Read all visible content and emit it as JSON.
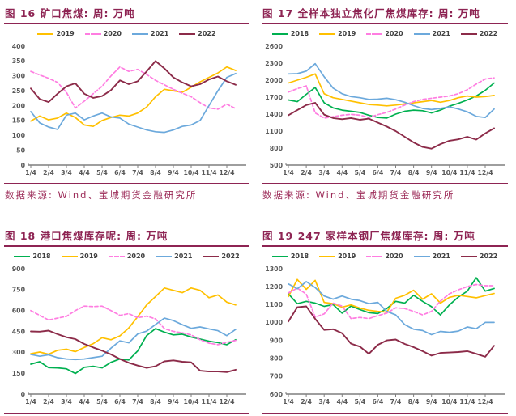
{
  "colors": {
    "title": "#8E2453",
    "rule": "#8E2453",
    "source": "#9C2B58",
    "axis_text": "#595959",
    "axis_line": "#7F7F7F",
    "s2018": "#00B050",
    "s2019": "#FFC000",
    "s2020": "#FF7DE1",
    "s2021": "#6CA9DC",
    "s2022": "#8C2B49"
  },
  "chart_data": [
    {
      "id": "fig16",
      "type": "line",
      "title": "图 16 矿口焦煤: 周: 万吨",
      "source": "数据来源: Wind、宝城期货金融研究所",
      "ylim": [
        0,
        400
      ],
      "ystep": 50,
      "grid": false,
      "legend_position": "top-center",
      "x_labels": [
        "1/4",
        "2/4",
        "3/4",
        "4/4",
        "5/4",
        "6/4",
        "7/4",
        "8/4",
        "9/4",
        "10/4",
        "11/4",
        "12/4"
      ],
      "series": [
        {
          "name": "2019",
          "color": "#FFC000",
          "dash": false,
          "values": [
            148,
            165,
            152,
            158,
            175,
            160,
            135,
            130,
            150,
            160,
            168,
            165,
            175,
            195,
            230,
            255,
            250,
            245,
            262,
            280,
            295,
            310,
            330,
            318
          ]
        },
        {
          "name": "2020",
          "color": "#FF7DE1",
          "dash": true,
          "values": [
            315,
            303,
            292,
            278,
            245,
            192,
            215,
            240,
            265,
            300,
            330,
            315,
            322,
            305,
            285,
            270,
            255,
            242,
            230,
            210,
            192,
            188,
            205,
            190
          ]
        },
        {
          "name": "2021",
          "color": "#6CA9DC",
          "dash": false,
          "values": [
            180,
            142,
            128,
            120,
            168,
            175,
            152,
            165,
            175,
            162,
            158,
            138,
            128,
            118,
            112,
            110,
            118,
            130,
            135,
            150,
            200,
            250,
            295,
            308
          ]
        },
        {
          "name": "2022",
          "color": "#8C2B49",
          "dash": false,
          "values": [
            258,
            222,
            212,
            240,
            265,
            275,
            240,
            226,
            232,
            252,
            285,
            272,
            282,
            315,
            350,
            325,
            295,
            278,
            265,
            272,
            288,
            298,
            282,
            270
          ]
        }
      ]
    },
    {
      "id": "fig17",
      "type": "line",
      "title": "图 17 全样本独立焦化厂焦煤库存: 周: 万吨",
      "source": "数据来源: Wind、宝城期货金融研究所",
      "ylim": [
        500,
        2600
      ],
      "ystep": 300,
      "grid": false,
      "legend_position": "top-center",
      "x_labels": [
        "1/4",
        "2/4",
        "3/4",
        "4/4",
        "5/4",
        "6/4",
        "7/4",
        "8/4",
        "9/4",
        "10/4",
        "11/4",
        "12/4"
      ],
      "series": [
        {
          "name": "2018",
          "color": "#00B050",
          "dash": false,
          "values": [
            1650,
            1620,
            1750,
            1870,
            1600,
            1510,
            1470,
            1450,
            1430,
            1380,
            1340,
            1330,
            1400,
            1450,
            1470,
            1460,
            1420,
            1470,
            1540,
            1590,
            1650,
            1720,
            1820,
            1950
          ]
        },
        {
          "name": "2019",
          "color": "#FFC000",
          "dash": false,
          "values": [
            1950,
            2000,
            2050,
            2110,
            1760,
            1690,
            1660,
            1630,
            1600,
            1570,
            1560,
            1545,
            1560,
            1580,
            1600,
            1620,
            1640,
            1610,
            1640,
            1690,
            1720,
            1700,
            1710,
            1730
          ]
        },
        {
          "name": "2020",
          "color": "#FF7DE1",
          "dash": true,
          "values": [
            1790,
            1850,
            1900,
            1420,
            1330,
            1355,
            1380,
            1395,
            1380,
            1340,
            1390,
            1430,
            1490,
            1560,
            1620,
            1660,
            1680,
            1700,
            1720,
            1760,
            1830,
            1930,
            2020,
            2040
          ]
        },
        {
          "name": "2021",
          "color": "#6CA9DC",
          "dash": false,
          "values": [
            2110,
            2115,
            2160,
            2290,
            2060,
            1860,
            1760,
            1710,
            1690,
            1660,
            1665,
            1680,
            1655,
            1610,
            1550,
            1500,
            1480,
            1500,
            1530,
            1490,
            1440,
            1360,
            1340,
            1490
          ]
        },
        {
          "name": "2022",
          "color": "#8C2B49",
          "dash": false,
          "values": [
            1380,
            1470,
            1560,
            1600,
            1390,
            1330,
            1310,
            1330,
            1300,
            1320,
            1250,
            1180,
            1100,
            1000,
            900,
            820,
            790,
            870,
            930,
            955,
            1000,
            950,
            1060,
            1150
          ]
        }
      ]
    },
    {
      "id": "fig18",
      "type": "line",
      "title": "图 18 港口焦煤库存呢: 周: 万吨",
      "ylim": [
        0,
        900
      ],
      "ystep": 150,
      "grid": false,
      "legend_position": "top-center",
      "x_labels": [
        "1/4",
        "2/4",
        "3/4",
        "4/4",
        "5/4",
        "6/4",
        "7/4",
        "8/4",
        "9/4",
        "10/4",
        "11/4",
        "12/4"
      ],
      "series": [
        {
          "name": "2018",
          "color": "#00B050",
          "dash": false,
          "values": [
            215,
            232,
            190,
            188,
            182,
            148,
            192,
            200,
            188,
            228,
            252,
            245,
            310,
            420,
            470,
            445,
            425,
            430,
            410,
            395,
            380,
            370,
            355,
            390
          ]
        },
        {
          "name": "2019",
          "color": "#FFC000",
          "dash": false,
          "values": [
            290,
            302,
            286,
            315,
            322,
            305,
            335,
            362,
            405,
            390,
            418,
            475,
            555,
            640,
            700,
            762,
            745,
            728,
            762,
            745,
            692,
            712,
            660,
            640
          ]
        },
        {
          "name": "2020",
          "color": "#FF7DE1",
          "dash": true,
          "values": [
            600,
            565,
            532,
            545,
            558,
            600,
            632,
            628,
            632,
            600,
            565,
            578,
            548,
            560,
            540,
            470,
            450,
            440,
            425,
            390,
            365,
            355,
            372,
            385
          ]
        },
        {
          "name": "2021",
          "color": "#6CA9DC",
          "dash": false,
          "values": [
            285,
            272,
            282,
            262,
            252,
            248,
            252,
            262,
            272,
            330,
            382,
            368,
            432,
            452,
            500,
            545,
            528,
            498,
            472,
            482,
            468,
            455,
            420,
            465
          ]
        },
        {
          "name": "2022",
          "color": "#8C2B49",
          "dash": false,
          "values": [
            450,
            448,
            456,
            430,
            408,
            395,
            360,
            335,
            312,
            285,
            252,
            225,
            205,
            188,
            200,
            235,
            242,
            232,
            228,
            168,
            162,
            162,
            158,
            175
          ]
        }
      ]
    },
    {
      "id": "fig19",
      "type": "line",
      "title": "图 19 247 家样本钢厂焦煤库存: 周: 万吨",
      "ylim": [
        600,
        1300
      ],
      "ystep": 100,
      "grid": false,
      "legend_position": "top-center",
      "x_labels": [
        "1/4",
        "2/4",
        "3/4",
        "4/4",
        "5/4",
        "6/4",
        "7/4",
        "8/4",
        "9/4",
        "10/4",
        "11/4",
        "12/4"
      ],
      "series": [
        {
          "name": "2018",
          "color": "#00B050",
          "dash": false,
          "values": [
            1160,
            1105,
            1118,
            1108,
            1090,
            1100,
            1052,
            1092,
            1072,
            1055,
            1050,
            1078,
            1118,
            1108,
            1152,
            1118,
            1088,
            1042,
            1098,
            1142,
            1175,
            1250,
            1175,
            1190
          ]
        },
        {
          "name": "2019",
          "color": "#FFC000",
          "dash": false,
          "values": [
            1145,
            1240,
            1185,
            1235,
            1112,
            1105,
            1085,
            1098,
            1080,
            1068,
            1062,
            1058,
            1135,
            1152,
            1180,
            1130,
            1160,
            1108,
            1140,
            1152,
            1145,
            1138,
            1150,
            1162
          ]
        },
        {
          "name": "2020",
          "color": "#FF7DE1",
          "dash": true,
          "values": [
            1165,
            1192,
            1158,
            1030,
            1048,
            1108,
            1092,
            1022,
            1028,
            1022,
            1038,
            1052,
            1082,
            1078,
            1062,
            1042,
            1062,
            1120,
            1160,
            1182,
            1200,
            1212,
            1205,
            1205
          ]
        },
        {
          "name": "2021",
          "color": "#6CA9DC",
          "dash": false,
          "values": [
            1215,
            1188,
            1228,
            1195,
            1148,
            1130,
            1148,
            1130,
            1122,
            1105,
            1112,
            1062,
            1042,
            988,
            962,
            955,
            932,
            950,
            945,
            952,
            975,
            965,
            1000,
            1000
          ]
        },
        {
          "name": "2022",
          "color": "#8C2B49",
          "dash": false,
          "values": [
            1005,
            1085,
            1090,
            1020,
            958,
            962,
            940,
            882,
            865,
            825,
            875,
            900,
            905,
            880,
            862,
            840,
            815,
            830,
            832,
            835,
            840,
            825,
            808,
            870
          ]
        }
      ]
    }
  ]
}
